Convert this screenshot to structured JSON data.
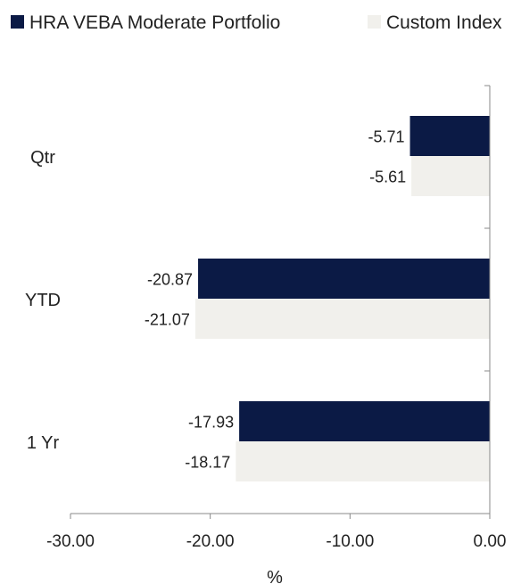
{
  "chart_data": {
    "type": "bar",
    "orientation": "horizontal",
    "categories": [
      "Qtr",
      "YTD",
      "1 Yr"
    ],
    "series": [
      {
        "name": "HRA VEBA Moderate Portfolio",
        "color": "#0b1a45",
        "values": [
          -5.71,
          -20.87,
          -17.93
        ],
        "labels": [
          "-5.71",
          "-20.87",
          "-17.93"
        ]
      },
      {
        "name": "Custom Index",
        "color": "#f1f0ec",
        "values": [
          -5.61,
          -21.07,
          -18.17
        ],
        "labels": [
          "-5.61",
          "-21.07",
          "-18.17"
        ]
      }
    ],
    "xlabel": "%",
    "xlim": [
      -30,
      0
    ],
    "xticks": [
      -30,
      -20,
      -10,
      0
    ],
    "xtick_labels": [
      "-30.00",
      "-20.00",
      "-10.00",
      "0.00"
    ],
    "legend_position": "top",
    "grid": false
  }
}
